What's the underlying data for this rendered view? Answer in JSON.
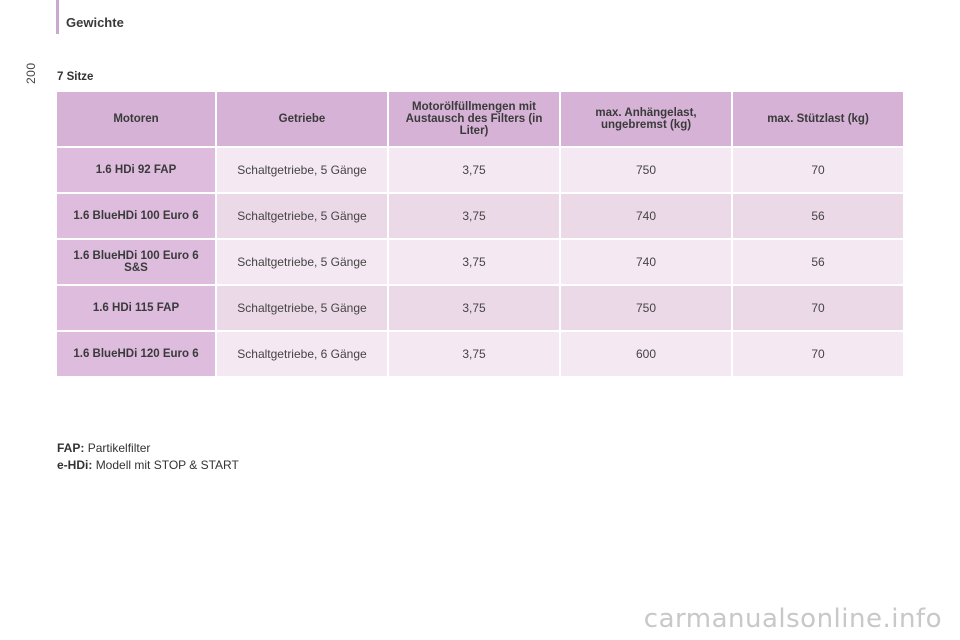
{
  "header": {
    "title": "Gewichte",
    "page_number": "200"
  },
  "section": {
    "title": "7 Sitze"
  },
  "table": {
    "columns": [
      "Motoren",
      "Getriebe",
      "Motorölfüllmengen mit Austausch des Filters (in Liter)",
      "max. Anhängelast, ungebremst (kg)",
      "max. Stützlast (kg)"
    ],
    "rows": [
      {
        "engine": "1.6 HDi 92 FAP",
        "gearbox": "Schaltgetriebe, 5 Gänge",
        "oil": "3,75",
        "trailer": "750",
        "nose": "70"
      },
      {
        "engine": "1.6 BlueHDi 100 Euro 6",
        "gearbox": "Schaltgetriebe, 5 Gänge",
        "oil": "3,75",
        "trailer": "740",
        "nose": "56"
      },
      {
        "engine": "1.6 BlueHDi 100 Euro 6 S&S",
        "gearbox": "Schaltgetriebe, 5 Gänge",
        "oil": "3,75",
        "trailer": "740",
        "nose": "56"
      },
      {
        "engine": "1.6 HDi 115 FAP",
        "gearbox": "Schaltgetriebe, 5 Gänge",
        "oil": "3,75",
        "trailer": "750",
        "nose": "70"
      },
      {
        "engine": "1.6 BlueHDi 120 Euro 6",
        "gearbox": "Schaltgetriebe, 6 Gänge",
        "oil": "3,75",
        "trailer": "600",
        "nose": "70"
      }
    ]
  },
  "footnotes": [
    {
      "term": "FAP:",
      "text": "Partikelfilter"
    },
    {
      "term": "e-HDi:",
      "text": "Modell mit STOP & START"
    }
  ],
  "watermark": "carmanualsonline.info"
}
